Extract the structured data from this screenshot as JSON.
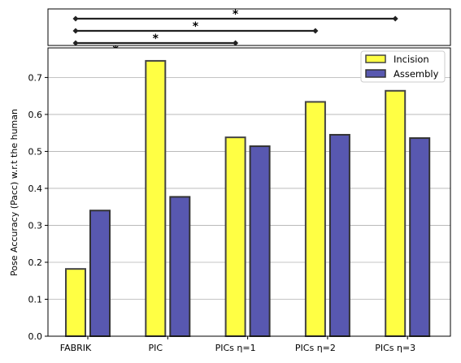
{
  "chart_data": {
    "type": "bar",
    "categories": [
      "FABRIK",
      "PIC",
      "PICs η=1",
      "PICs η=2",
      "PICs η=3"
    ],
    "series": [
      {
        "name": "Incision",
        "values": [
          0.182,
          0.745,
          0.538,
          0.634,
          0.664
        ],
        "color": "#ffff44",
        "edge": "#444444"
      },
      {
        "name": "Assembly",
        "values": [
          0.34,
          0.377,
          0.514,
          0.545,
          0.536
        ],
        "color": "#5858b0",
        "edge": "#333333"
      }
    ],
    "ylabel": "Pose Accuracy (Pacc) w.r.t the human",
    "xlabel": "",
    "ylim": [
      0,
      0.78
    ],
    "yticks": [
      "0.0",
      "0.1",
      "0.2",
      "0.3",
      "0.4",
      "0.5",
      "0.6",
      "0.7"
    ],
    "grid": "y",
    "legend_position": "top-right",
    "significance": [
      {
        "from": "FABRIK",
        "to": "PIC",
        "label": "*"
      },
      {
        "from": "FABRIK",
        "to": "PICs η=1",
        "label": "*"
      },
      {
        "from": "FABRIK",
        "to": "PICs η=2",
        "label": "*"
      },
      {
        "from": "FABRIK",
        "to": "PICs η=3",
        "label": "*"
      }
    ]
  }
}
